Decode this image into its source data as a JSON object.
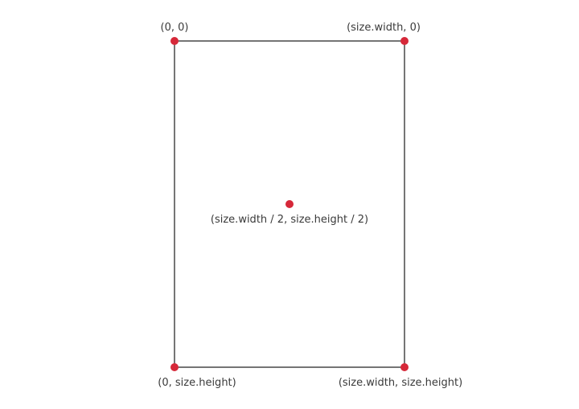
{
  "colors": {
    "background": "#ffffff",
    "frame": "#2b2b2b",
    "point": "#d62839",
    "text": "#3a3a3a"
  },
  "labels": {
    "top_left": "(0, 0)",
    "top_right": "(size.width, 0)",
    "center": "(size.width / 2, size.height / 2)",
    "bottom_left": "(0, size.height)",
    "bottom_right": "(size.width, size.height)"
  }
}
